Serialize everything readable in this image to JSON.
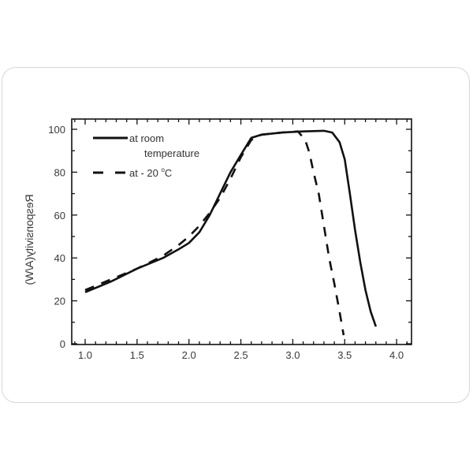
{
  "chart_data": {
    "type": "line",
    "title": "",
    "xlabel": "",
    "ylabel": "Responsivity(A/W)",
    "xlim": [
      0.9,
      4.1
    ],
    "ylim": [
      0,
      105
    ],
    "x_ticks": [
      "1.0",
      "1.5",
      "2.0",
      "2.5",
      "3.0",
      "3.5",
      "4.0"
    ],
    "y_ticks": [
      "0",
      "20",
      "40",
      "60",
      "80",
      "100"
    ],
    "grid": false,
    "legend_position": "upper-left",
    "series": [
      {
        "name": "at room temperature",
        "style": "solid",
        "color": "#111111",
        "x": [
          1.0,
          1.25,
          1.5,
          1.75,
          1.9,
          2.0,
          2.1,
          2.2,
          2.3,
          2.4,
          2.5,
          2.6,
          2.7,
          2.9,
          3.1,
          3.3,
          3.38,
          3.45,
          3.5,
          3.55,
          3.6,
          3.65,
          3.7,
          3.75,
          3.8
        ],
        "values": [
          24,
          29,
          35,
          40,
          44,
          47,
          52,
          60,
          70,
          80,
          88,
          96,
          97.5,
          98.5,
          99,
          99.3,
          98.5,
          94,
          86,
          70,
          53,
          38,
          25,
          15,
          8
        ]
      },
      {
        "name": "at - 20 °C",
        "style": "dashed",
        "color": "#111111",
        "x": [
          1.0,
          1.25,
          1.5,
          1.75,
          1.9,
          2.0,
          2.1,
          2.2,
          2.3,
          2.4,
          2.5,
          2.6,
          2.7,
          2.9,
          3.05,
          3.12,
          3.16,
          3.2,
          3.25,
          3.3,
          3.35,
          3.4,
          3.45,
          3.49
        ],
        "values": [
          25,
          30,
          35,
          41,
          46,
          50,
          55,
          61,
          68,
          77,
          87,
          95,
          97.5,
          98.5,
          99,
          95,
          89,
          80,
          70,
          55,
          40,
          28,
          15,
          4
        ]
      }
    ]
  },
  "legend": {
    "room_line1": "at room",
    "room_line2": "temperature",
    "cold_label": "at - 20 ",
    "cold_degree": "o",
    "cold_unit": "C"
  },
  "axes": {
    "ylabel": "Responsivity(A/W)"
  }
}
